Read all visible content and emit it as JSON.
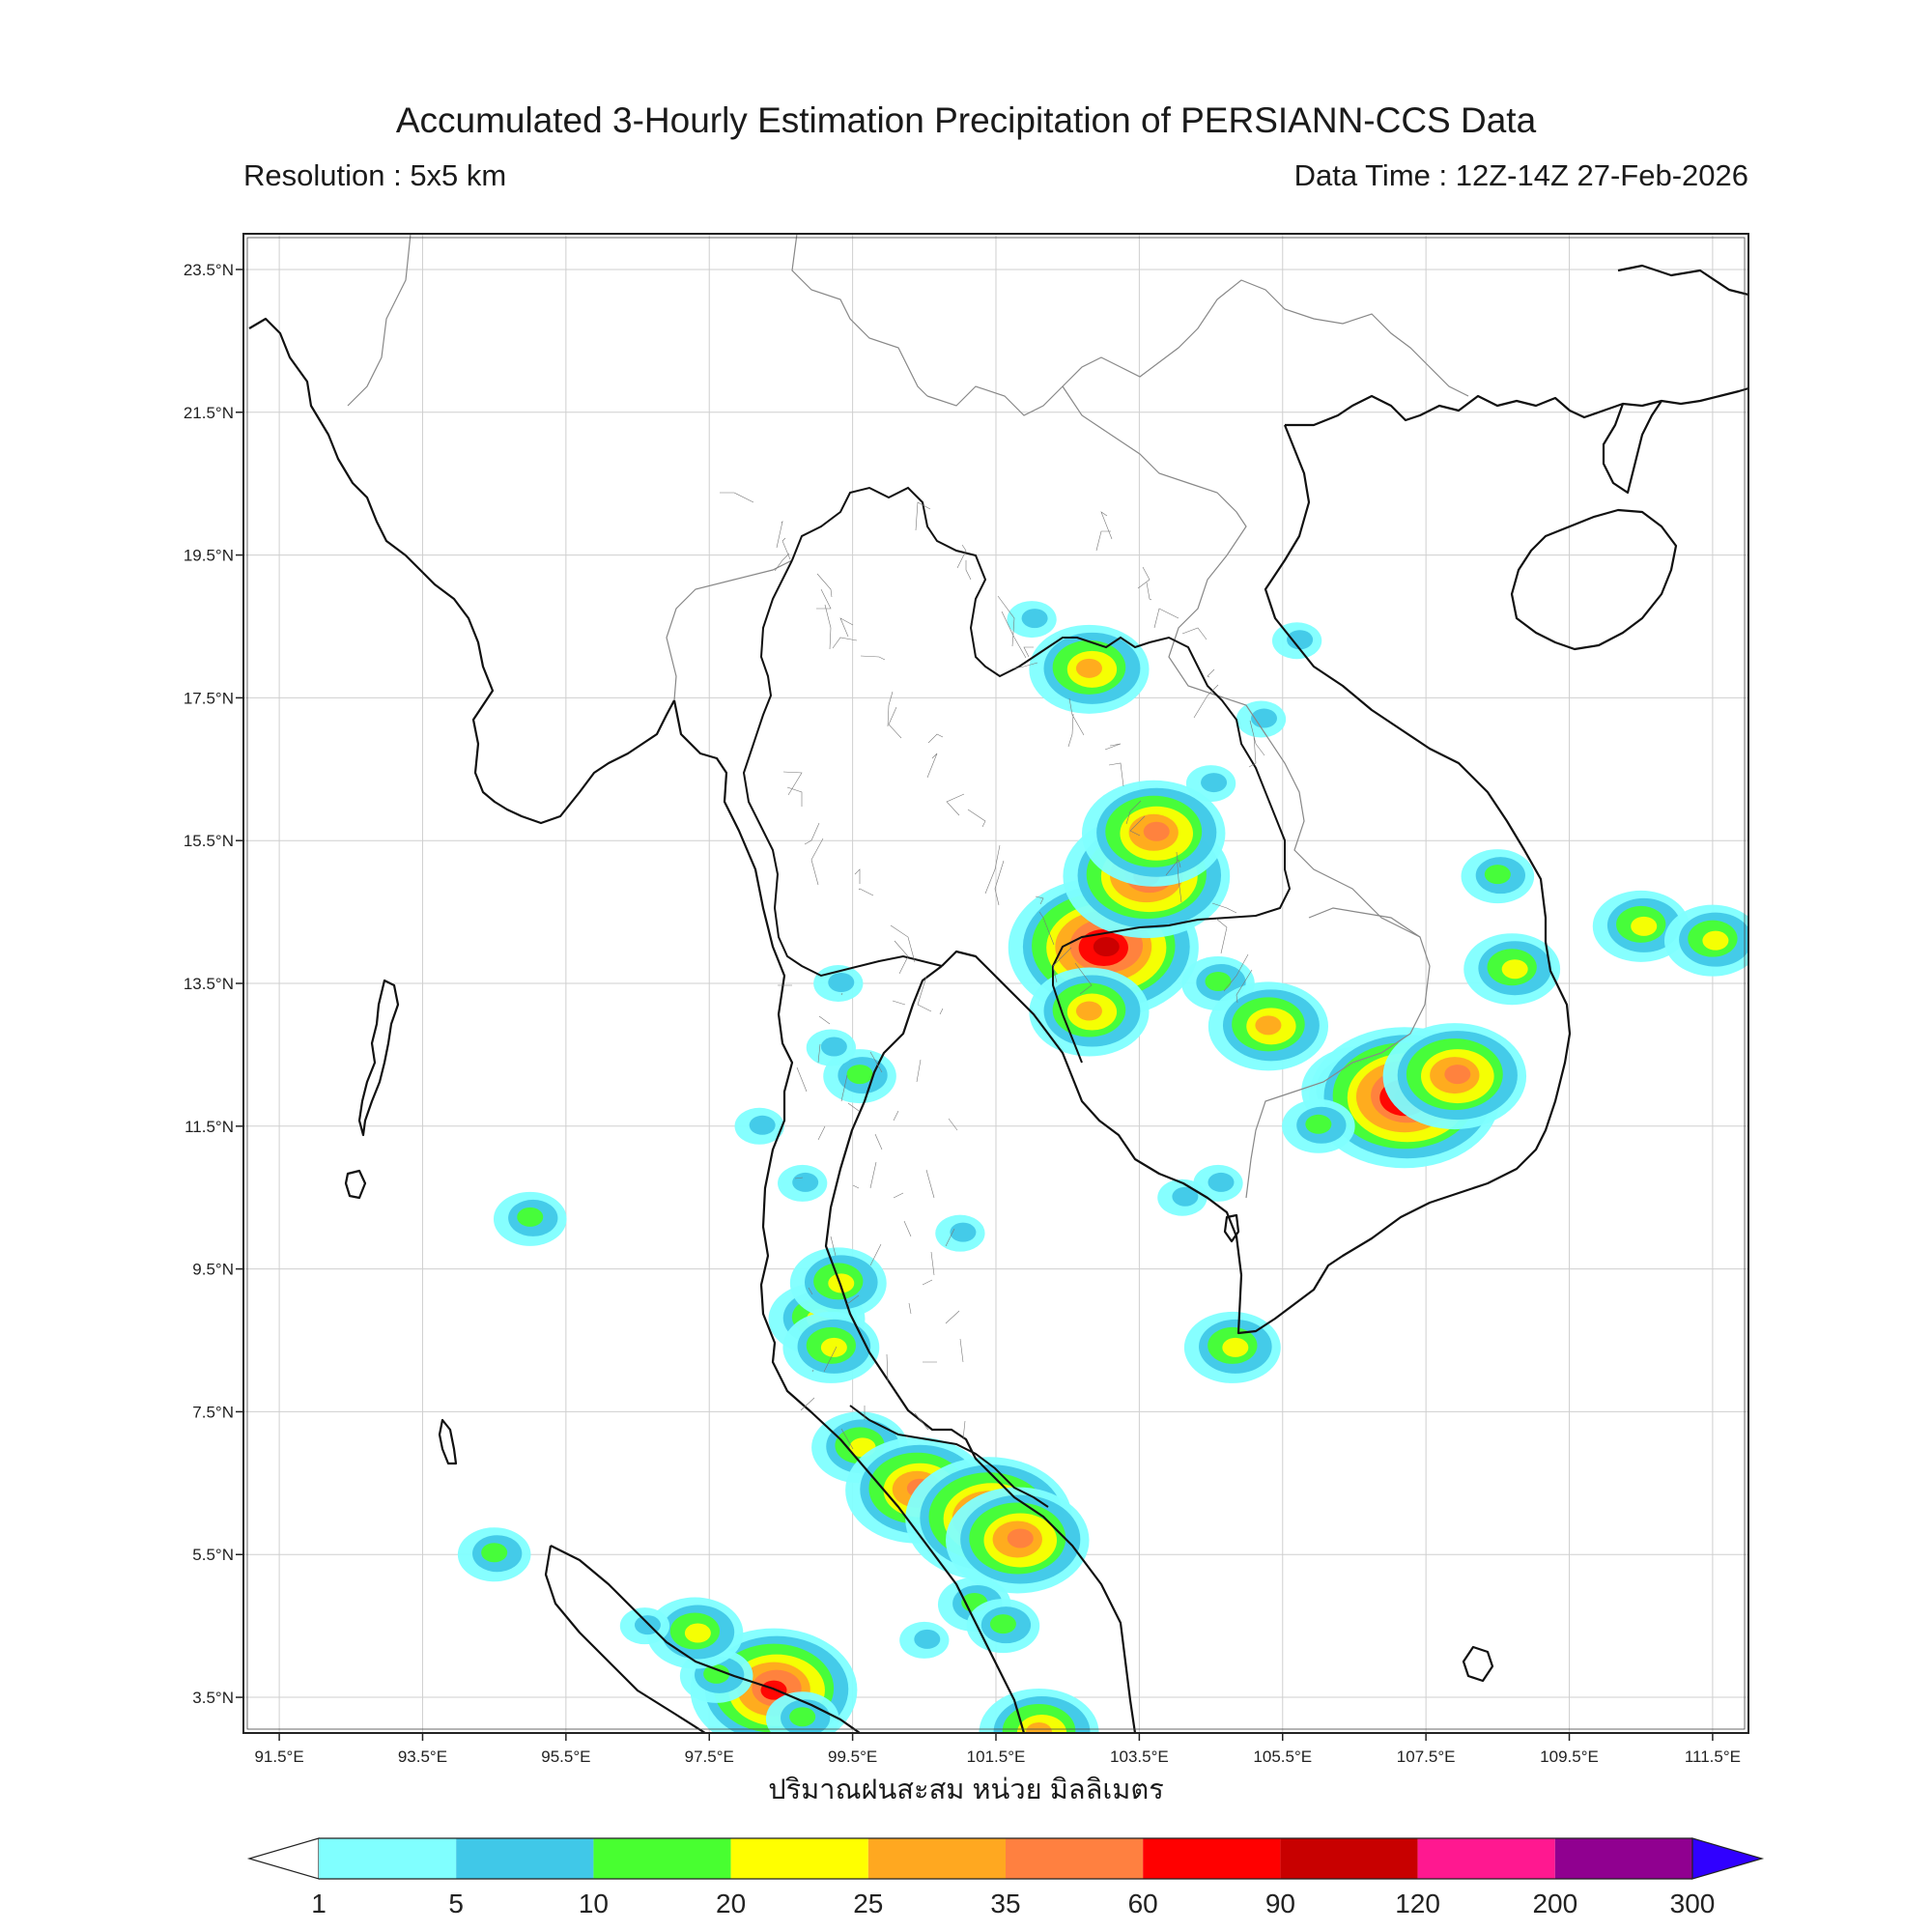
{
  "header": {
    "title": "Accumulated 3-Hourly Estimation Precipitation of PERSIANN-CCS Data",
    "resolution": "Resolution : 5x5 km",
    "data_time": "Data Time : 12Z-14Z 27-Feb-2026"
  },
  "map": {
    "x_axis_label": "ปริมาณฝนสะสม หน่วย มิลลิเมตร",
    "lon_range": [
      91,
      112
    ],
    "lat_range": [
      3,
      24
    ],
    "lon_ticks": [
      "91.5°E",
      "93.5°E",
      "95.5°E",
      "97.5°E",
      "99.5°E",
      "101.5°E",
      "103.5°E",
      "105.5°E",
      "107.5°E",
      "109.5°E",
      "111.5°E"
    ],
    "lat_ticks": [
      "23.5°N",
      "21.5°N",
      "19.5°N",
      "17.5°N",
      "15.5°N",
      "13.5°N",
      "11.5°N",
      "9.5°N",
      "7.5°N",
      "5.5°N",
      "3.5°N"
    ],
    "grid": true
  },
  "colorbar": {
    "ticks": [
      "1",
      "5",
      "10",
      "20",
      "25",
      "35",
      "60",
      "90",
      "120",
      "200",
      "300"
    ],
    "colors": [
      "#80ffff",
      "#40c8e8",
      "#48ff30",
      "#ffff00",
      "#ffa820",
      "#ff8040",
      "#ff0000",
      "#c80000",
      "#ff1890",
      "#900090"
    ],
    "under_color": "#ffffff",
    "over_color": "#3000ff"
  },
  "rain_clusters": [
    {
      "lon": 103.0,
      "lat": 14.0,
      "level": 7
    },
    {
      "lon": 103.6,
      "lat": 15.0,
      "level": 6
    },
    {
      "lon": 103.7,
      "lat": 15.6,
      "level": 5
    },
    {
      "lon": 102.8,
      "lat": 17.9,
      "level": 4
    },
    {
      "lon": 102.8,
      "lat": 13.1,
      "level": 4
    },
    {
      "lon": 104.6,
      "lat": 13.5,
      "level": 2
    },
    {
      "lon": 105.3,
      "lat": 12.9,
      "level": 4
    },
    {
      "lon": 106.6,
      "lat": 12.0,
      "level": 4
    },
    {
      "lon": 107.2,
      "lat": 11.9,
      "level": 7
    },
    {
      "lon": 107.9,
      "lat": 12.2,
      "level": 5
    },
    {
      "lon": 106.0,
      "lat": 11.5,
      "level": 2
    },
    {
      "lon": 108.7,
      "lat": 13.7,
      "level": 3
    },
    {
      "lon": 108.5,
      "lat": 15.0,
      "level": 2
    },
    {
      "lon": 104.1,
      "lat": 10.5,
      "level": 1
    },
    {
      "lon": 104.6,
      "lat": 10.7,
      "level": 1
    },
    {
      "lon": 99.0,
      "lat": 8.8,
      "level": 3
    },
    {
      "lon": 99.2,
      "lat": 8.4,
      "level": 3
    },
    {
      "lon": 99.3,
      "lat": 9.3,
      "level": 3
    },
    {
      "lon": 99.6,
      "lat": 7.0,
      "level": 3
    },
    {
      "lon": 100.4,
      "lat": 6.4,
      "level": 5
    },
    {
      "lon": 101.4,
      "lat": 6.0,
      "level": 6
    },
    {
      "lon": 101.8,
      "lat": 5.7,
      "level": 5
    },
    {
      "lon": 98.4,
      "lat": 3.6,
      "level": 6
    },
    {
      "lon": 97.6,
      "lat": 3.8,
      "level": 2
    },
    {
      "lon": 97.3,
      "lat": 4.4,
      "level": 3
    },
    {
      "lon": 98.8,
      "lat": 3.2,
      "level": 2
    },
    {
      "lon": 102.1,
      "lat": 3.0,
      "level": 4
    },
    {
      "lon": 101.2,
      "lat": 4.8,
      "level": 2
    },
    {
      "lon": 101.6,
      "lat": 4.5,
      "level": 2
    },
    {
      "lon": 100.5,
      "lat": 4.3,
      "level": 1
    },
    {
      "lon": 99.6,
      "lat": 12.2,
      "level": 2
    },
    {
      "lon": 99.2,
      "lat": 12.6,
      "level": 1
    },
    {
      "lon": 99.3,
      "lat": 13.5,
      "level": 1
    },
    {
      "lon": 98.2,
      "lat": 11.5,
      "level": 1
    },
    {
      "lon": 98.8,
      "lat": 10.7,
      "level": 1
    },
    {
      "lon": 102.0,
      "lat": 18.6,
      "level": 1
    },
    {
      "lon": 104.5,
      "lat": 16.3,
      "level": 1
    },
    {
      "lon": 105.2,
      "lat": 17.2,
      "level": 1
    },
    {
      "lon": 105.7,
      "lat": 18.3,
      "level": 1
    },
    {
      "lon": 110.5,
      "lat": 14.3,
      "level": 3
    },
    {
      "lon": 111.5,
      "lat": 14.1,
      "level": 3
    },
    {
      "lon": 94.5,
      "lat": 5.5,
      "level": 2
    },
    {
      "lon": 95.0,
      "lat": 10.2,
      "level": 2
    },
    {
      "lon": 104.8,
      "lat": 8.4,
      "level": 3
    },
    {
      "lon": 101.0,
      "lat": 10.0,
      "level": 1
    },
    {
      "lon": 96.6,
      "lat": 4.5,
      "level": 1
    }
  ]
}
